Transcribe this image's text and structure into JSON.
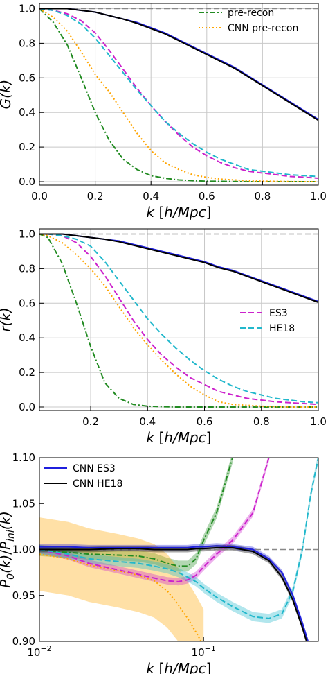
{
  "chart_data": [
    {
      "type": "line",
      "ylabel": "G(k)",
      "xlabel": "k [h/Mpc]",
      "xlim": [
        0.0,
        1.0
      ],
      "ylim": [
        -0.02,
        1.03
      ],
      "xscale": "linear",
      "grid": true,
      "legend_position": "top-right",
      "xticks": [
        "0.0",
        "0.2",
        "0.4",
        "0.6",
        "0.8",
        "1.0"
      ],
      "yticks": [
        "0.0",
        "0.2",
        "0.4",
        "0.6",
        "0.8",
        "1.0"
      ],
      "x": [
        0.0,
        0.05,
        0.1,
        0.15,
        0.2,
        0.25,
        0.3,
        0.35,
        0.4,
        0.45,
        0.5,
        0.55,
        0.6,
        0.65,
        0.7,
        0.75,
        0.8,
        0.85,
        0.9,
        0.95,
        1.0
      ],
      "series": [
        {
          "name": "",
          "color": "#888888",
          "style": "dashed",
          "values": [
            1,
            1,
            1,
            1,
            1,
            1,
            1,
            1,
            1,
            1,
            1,
            1,
            1,
            1,
            1,
            1,
            1,
            1,
            1,
            1,
            1
          ]
        },
        {
          "name": "pre-recon",
          "color": "#228b22",
          "style": "dashdot",
          "values": [
            1.0,
            0.92,
            0.79,
            0.6,
            0.4,
            0.24,
            0.13,
            0.07,
            0.035,
            0.02,
            0.01,
            0.006,
            0.003,
            0.002,
            0.001,
            0.0,
            0.0,
            0.0,
            0.0,
            0.0,
            0.0
          ]
        },
        {
          "name": "CNN pre-recon",
          "color": "#ffa500",
          "style": "dotted",
          "values": [
            1.0,
            0.95,
            0.87,
            0.75,
            0.62,
            0.52,
            0.4,
            0.28,
            0.18,
            0.11,
            0.07,
            0.04,
            0.025,
            0.015,
            0.01,
            0.005,
            0.003,
            0.002,
            0.001,
            0.0,
            0.0
          ]
        },
        {
          "name": "",
          "color": "#cc22cc",
          "style": "dashed",
          "values": [
            1.0,
            0.99,
            0.97,
            0.93,
            0.86,
            0.76,
            0.65,
            0.54,
            0.44,
            0.35,
            0.27,
            0.2,
            0.15,
            0.11,
            0.08,
            0.06,
            0.05,
            0.04,
            0.03,
            0.026,
            0.02
          ]
        },
        {
          "name": "",
          "color": "#22b8cc",
          "style": "dashed",
          "values": [
            1.0,
            0.99,
            0.96,
            0.91,
            0.83,
            0.73,
            0.63,
            0.53,
            0.44,
            0.35,
            0.28,
            0.22,
            0.17,
            0.13,
            0.1,
            0.07,
            0.06,
            0.05,
            0.04,
            0.035,
            0.03
          ]
        },
        {
          "name": "",
          "color": "#1f1fdd",
          "style": "solid",
          "values": [
            1.0,
            1.0,
            1.0,
            0.99,
            0.98,
            0.96,
            0.94,
            0.92,
            0.89,
            0.86,
            0.82,
            0.78,
            0.74,
            0.7,
            0.66,
            0.61,
            0.56,
            0.51,
            0.46,
            0.41,
            0.36
          ]
        },
        {
          "name": "",
          "color": "#000000",
          "style": "solid",
          "values": [
            1.0,
            1.0,
            1.0,
            0.99,
            0.98,
            0.96,
            0.94,
            0.915,
            0.885,
            0.855,
            0.815,
            0.775,
            0.735,
            0.695,
            0.655,
            0.605,
            0.555,
            0.505,
            0.455,
            0.405,
            0.355
          ]
        }
      ]
    },
    {
      "type": "line",
      "ylabel": "r(k)",
      "xlabel": "k [h/Mpc]",
      "xlim": [
        0.02,
        1.0
      ],
      "ylim": [
        -0.02,
        1.03
      ],
      "xscale": "linear",
      "grid": true,
      "legend_position": "center-right",
      "xticks": [
        "0.2",
        "0.4",
        "0.6",
        "0.8",
        "1.0"
      ],
      "yticks": [
        "0.0",
        "0.2",
        "0.4",
        "0.6",
        "0.8",
        "1.0"
      ],
      "x": [
        0.02,
        0.05,
        0.1,
        0.15,
        0.2,
        0.25,
        0.3,
        0.35,
        0.4,
        0.45,
        0.5,
        0.55,
        0.6,
        0.65,
        0.7,
        0.75,
        0.8,
        0.85,
        0.9,
        0.95,
        1.0
      ],
      "series": [
        {
          "name": "",
          "color": "#888888",
          "style": "dashed",
          "values": [
            1,
            1,
            1,
            1,
            1,
            1,
            1,
            1,
            1,
            1,
            1,
            1,
            1,
            1,
            1,
            1,
            1,
            1,
            1,
            1,
            1
          ]
        },
        {
          "name": "",
          "color": "#228b22",
          "style": "dashdot",
          "values": [
            1.0,
            0.98,
            0.83,
            0.6,
            0.35,
            0.14,
            0.05,
            0.015,
            0.005,
            0.002,
            0.0,
            0.0,
            0.0,
            0.0,
            0.0,
            0.0,
            0.0,
            0.0,
            0.0,
            0.0,
            0.0
          ]
        },
        {
          "name": "",
          "color": "#ffa500",
          "style": "dotted",
          "values": [
            1.0,
            0.99,
            0.95,
            0.88,
            0.8,
            0.7,
            0.58,
            0.46,
            0.36,
            0.27,
            0.19,
            0.12,
            0.07,
            0.03,
            0.015,
            0.01,
            0.005,
            0.002,
            0.0,
            0.0,
            0.0
          ]
        },
        {
          "name": "ES3",
          "color": "#cc22cc",
          "style": "dashed",
          "values": [
            1.0,
            1.0,
            0.99,
            0.95,
            0.87,
            0.76,
            0.63,
            0.5,
            0.39,
            0.3,
            0.23,
            0.17,
            0.13,
            0.09,
            0.07,
            0.05,
            0.04,
            0.03,
            0.025,
            0.02,
            0.015
          ]
        },
        {
          "name": "HE18",
          "color": "#22b8cc",
          "style": "dashed",
          "values": [
            1.0,
            1.0,
            0.99,
            0.97,
            0.93,
            0.84,
            0.73,
            0.62,
            0.51,
            0.42,
            0.34,
            0.27,
            0.21,
            0.16,
            0.12,
            0.09,
            0.07,
            0.05,
            0.04,
            0.03,
            0.025
          ]
        },
        {
          "name": "",
          "color": "#1f1fdd",
          "style": "solid",
          "values": [
            1.0,
            1.0,
            1.0,
            0.99,
            0.98,
            0.97,
            0.96,
            0.94,
            0.92,
            0.9,
            0.88,
            0.86,
            0.84,
            0.81,
            0.79,
            0.76,
            0.73,
            0.7,
            0.67,
            0.64,
            0.61
          ]
        },
        {
          "name": "",
          "color": "#000000",
          "style": "solid",
          "values": [
            1.0,
            1.0,
            1.0,
            0.99,
            0.98,
            0.97,
            0.955,
            0.935,
            0.915,
            0.895,
            0.875,
            0.855,
            0.835,
            0.805,
            0.785,
            0.755,
            0.725,
            0.695,
            0.665,
            0.635,
            0.605
          ]
        }
      ]
    },
    {
      "type": "line",
      "ylabel": "P_0(k)/P_ini(k)",
      "xlabel": "k [h/Mpc]",
      "xlim": [
        0.01,
        0.5
      ],
      "ylim": [
        0.9,
        1.1
      ],
      "xscale": "log",
      "grid": false,
      "legend_position": "top-left",
      "xticks": [
        "10^-2",
        "10^-1"
      ],
      "yticks": [
        "0.90",
        "0.95",
        "1.00",
        "1.05",
        "1.10"
      ],
      "x": [
        0.01,
        0.015,
        0.02,
        0.03,
        0.04,
        0.05,
        0.06,
        0.07,
        0.08,
        0.09,
        0.1,
        0.12,
        0.15,
        0.2,
        0.25,
        0.3,
        0.35,
        0.4,
        0.45,
        0.5
      ],
      "series": [
        {
          "name": "",
          "color": "#888888",
          "style": "dashed",
          "values": [
            1,
            1,
            1,
            1,
            1,
            1,
            1,
            1,
            1,
            1,
            1,
            1,
            1,
            1,
            1,
            1,
            1,
            1,
            1,
            1
          ]
        },
        {
          "name": "",
          "color": "#228b22",
          "style": "dashdot",
          "band": 0.006,
          "values": [
            0.999,
            0.997,
            0.995,
            0.994,
            0.993,
            0.99,
            0.985,
            0.982,
            0.982,
            0.99,
            1.01,
            1.04,
            1.1,
            null,
            null,
            null,
            null,
            null,
            null,
            null
          ]
        },
        {
          "name": "",
          "color": "#ffa500",
          "style": "dotted",
          "band": 0.04,
          "values": [
            0.995,
            0.99,
            0.983,
            0.977,
            0.972,
            0.966,
            0.955,
            0.94,
            0.925,
            0.91,
            0.895,
            null,
            null,
            null,
            null,
            null,
            null,
            null,
            null,
            null
          ]
        },
        {
          "name": "",
          "color": "#cc22cc",
          "style": "dashed",
          "band": 0.004,
          "values": [
            1.0,
            0.993,
            0.985,
            0.978,
            0.973,
            0.969,
            0.966,
            0.965,
            0.967,
            0.972,
            0.981,
            0.995,
            1.01,
            1.04,
            1.1,
            null,
            null,
            null,
            null,
            null
          ]
        },
        {
          "name": "",
          "color": "#22b8cc",
          "style": "dashed",
          "band": 0.005,
          "values": [
            1.0,
            0.995,
            0.99,
            0.987,
            0.985,
            0.982,
            0.979,
            0.975,
            0.97,
            0.965,
            0.958,
            0.948,
            0.938,
            0.927,
            0.925,
            0.93,
            0.955,
            1.0,
            1.06,
            1.1
          ]
        },
        {
          "name": "CNN ES3",
          "color": "#1f1fdd",
          "style": "solid",
          "band": 0.003,
          "values": [
            1.003,
            1.003,
            1.002,
            1.002,
            1.002,
            1.002,
            1.002,
            1.002,
            1.002,
            1.003,
            1.003,
            1.004,
            1.003,
            1.0,
            0.99,
            0.975,
            0.95,
            0.92,
            0.89,
            0.86
          ]
        },
        {
          "name": "CNN HE18",
          "color": "#000000",
          "style": "solid",
          "band": 0.003,
          "values": [
            1.0,
            1.0,
            1.0,
            1.001,
            1.001,
            1.0,
            1.0,
            1.0,
            1.0,
            1.001,
            1.001,
            1.002,
            1.002,
            0.998,
            0.988,
            0.97,
            0.945,
            0.915,
            0.885,
            0.855
          ]
        }
      ]
    }
  ]
}
